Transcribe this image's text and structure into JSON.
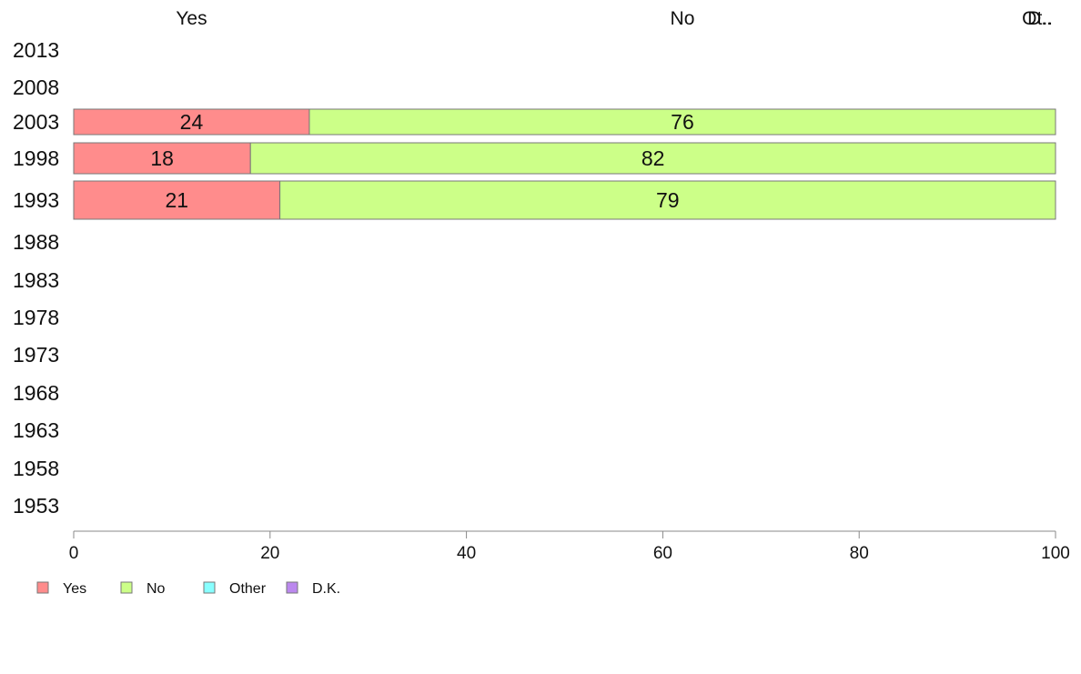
{
  "chart_data": {
    "type": "bar",
    "orientation": "horizontal",
    "stacked": true,
    "categories": [
      "2013",
      "2008",
      "2003",
      "1998",
      "1993",
      "1988",
      "1983",
      "1978",
      "1973",
      "1968",
      "1963",
      "1958",
      "1953"
    ],
    "series": [
      {
        "name": "Yes",
        "values": [
          null,
          null,
          24,
          18,
          21,
          null,
          null,
          null,
          null,
          null,
          null,
          null,
          null
        ]
      },
      {
        "name": "No",
        "values": [
          null,
          null,
          76,
          82,
          79,
          null,
          null,
          null,
          null,
          null,
          null,
          null,
          null
        ]
      },
      {
        "name": "Other",
        "values": [
          null,
          null,
          0,
          0,
          0,
          null,
          null,
          null,
          null,
          null,
          null,
          null,
          null
        ]
      },
      {
        "name": "D.K.",
        "values": [
          null,
          null,
          0,
          0,
          0,
          null,
          null,
          null,
          null,
          null,
          null,
          null,
          null
        ]
      }
    ],
    "top_labels": [
      "Yes",
      "No",
      "Ot..",
      "D.."
    ],
    "xlim": [
      0,
      100
    ],
    "xticks": [
      0,
      20,
      40,
      60,
      80,
      100
    ],
    "legend_position": "bottom-left",
    "colors": {
      "Yes": "#ff8c8c",
      "No": "#ccff88",
      "Other": "#88ffff",
      "D.K.": "#bb88ee"
    }
  }
}
